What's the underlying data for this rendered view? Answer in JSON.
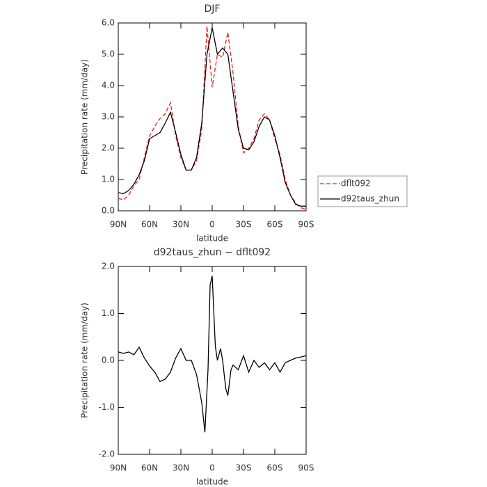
{
  "chart_data": [
    {
      "type": "line",
      "title": "DJF",
      "xlabel": "latitude",
      "ylabel": "Precipitation rate (mm/day)",
      "x": [
        90,
        85,
        80,
        75,
        70,
        65,
        60,
        55,
        50,
        45,
        40,
        35,
        30,
        25,
        20,
        15,
        10,
        5,
        0,
        -5,
        -10,
        -15,
        -20,
        -25,
        -30,
        -35,
        -40,
        -45,
        -50,
        -55,
        -60,
        -65,
        -70,
        -75,
        -80,
        -85,
        -90
      ],
      "series": [
        {
          "name": "dflt092",
          "color": "#e8201f",
          "linestyle": "dashed",
          "values": [
            0.4,
            0.35,
            0.5,
            0.8,
            1.0,
            1.7,
            2.4,
            2.7,
            2.95,
            3.1,
            3.45,
            2.4,
            1.7,
            1.3,
            1.3,
            1.6,
            2.6,
            5.9,
            3.95,
            5.0,
            4.9,
            5.7,
            4.4,
            2.7,
            1.85,
            2.0,
            2.3,
            2.9,
            3.1,
            2.9,
            2.3,
            1.8,
            1.0,
            0.5,
            0.25,
            0.1,
            0.05
          ]
        },
        {
          "name": "d92taus_zhun",
          "color": "#000000",
          "linestyle": "solid",
          "values": [
            0.58,
            0.55,
            0.65,
            0.85,
            1.15,
            1.6,
            2.3,
            2.4,
            2.5,
            2.8,
            3.15,
            2.5,
            1.8,
            1.3,
            1.3,
            1.7,
            2.8,
            5.0,
            5.85,
            5.0,
            5.2,
            5.0,
            3.8,
            2.6,
            2.0,
            1.95,
            2.2,
            2.7,
            3.0,
            2.9,
            2.4,
            1.7,
            0.9,
            0.5,
            0.2,
            0.15,
            0.15
          ]
        }
      ],
      "xlim": [
        90,
        -90
      ],
      "xticks": [
        {
          "value": 90,
          "label": "90N"
        },
        {
          "value": 60,
          "label": "60N"
        },
        {
          "value": 30,
          "label": "30N"
        },
        0,
        {
          "value": -30,
          "label": "30S"
        },
        {
          "value": -60,
          "label": "60S"
        },
        {
          "value": -90,
          "label": "90S"
        }
      ],
      "ylim": [
        0,
        6
      ],
      "yticks": [
        {
          "value": 0,
          "label": "0.0"
        },
        {
          "value": 1,
          "label": "1.0"
        },
        {
          "value": 2,
          "label": "2.0"
        },
        {
          "value": 3,
          "label": "3.0"
        },
        {
          "value": 4,
          "label": "4.0"
        },
        {
          "value": 5,
          "label": "5.0"
        },
        {
          "value": 6,
          "label": "6.0"
        }
      ],
      "legend": "right"
    },
    {
      "type": "line",
      "title": "d92taus_zhun − dflt092",
      "xlabel": "latitude",
      "ylabel": "Precipitation rate (mm/day)",
      "x": [
        90,
        85,
        80,
        75,
        70,
        65,
        60,
        55,
        50,
        45,
        40,
        35,
        30,
        25,
        20,
        15,
        10,
        7,
        4,
        2,
        0,
        -3,
        -5,
        -8,
        -10,
        -13,
        -15,
        -18,
        -20,
        -25,
        -30,
        -35,
        -40,
        -45,
        -50,
        -55,
        -60,
        -65,
        -70,
        -75,
        -80,
        -85,
        -90
      ],
      "values": [
        0.18,
        0.15,
        0.18,
        0.12,
        0.28,
        0.05,
        -0.12,
        -0.25,
        -0.45,
        -0.4,
        -0.25,
        0.05,
        0.25,
        0.0,
        0.0,
        -0.3,
        -0.9,
        -1.53,
        -0.2,
        1.6,
        1.8,
        0.3,
        0.0,
        0.25,
        0.0,
        -0.6,
        -0.75,
        -0.2,
        -0.1,
        -0.2,
        0.1,
        -0.25,
        0.0,
        -0.15,
        -0.05,
        -0.2,
        -0.05,
        -0.25,
        -0.05,
        0.0,
        0.05,
        0.07,
        0.1
      ],
      "color": "#000000",
      "xlim": [
        90,
        -90
      ],
      "xticks": [
        {
          "value": 90,
          "label": "90N"
        },
        {
          "value": 60,
          "label": "60N"
        },
        {
          "value": 30,
          "label": "30N"
        },
        0,
        {
          "value": -30,
          "label": "30S"
        },
        {
          "value": -60,
          "label": "60S"
        },
        {
          "value": -90,
          "label": "90S"
        }
      ],
      "ylim": [
        -2,
        2
      ],
      "yticks": [
        {
          "value": -2,
          "label": "-2.0"
        },
        {
          "value": -1,
          "label": "-1.0"
        },
        {
          "value": 0,
          "label": "0.0"
        },
        {
          "value": 1,
          "label": "1.0"
        },
        {
          "value": 2,
          "label": "2.0"
        }
      ]
    }
  ]
}
